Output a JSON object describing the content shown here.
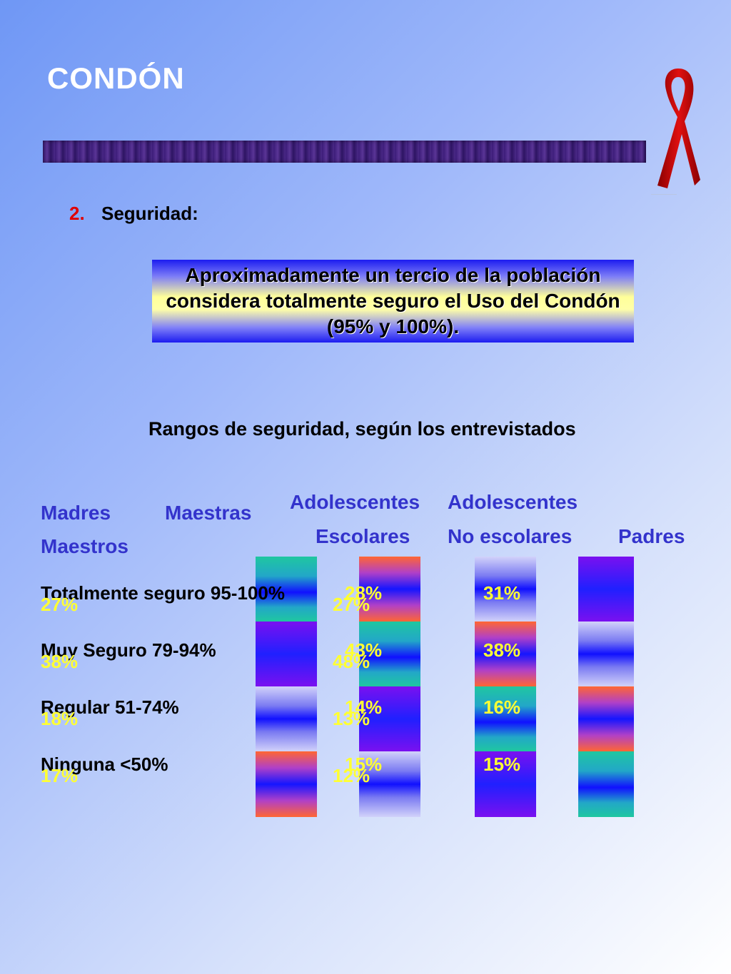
{
  "slide": {
    "title": "CONDÓN",
    "section_number": "2.",
    "section_label": "Seguridad:",
    "callout": "Aproximadamente un tercio de la población considera totalmente seguro el Uso del Condón (95%  y 100%)."
  },
  "chart_data": {
    "type": "bar",
    "title": "Rangos de seguridad, según los entrevistados",
    "group_headers": {
      "madres": "Madres",
      "maestras": "Maestras",
      "maestros": "Maestros",
      "adolescentes_1": "Adolescentes",
      "escolares": "Escolares",
      "adolescentes_2": "Adolescentes",
      "no_escolares": "No escolares",
      "padres": "Padres"
    },
    "categories": [
      "Totalmente seguro 95-100%",
      "Muy Seguro 79-94%",
      "Regular 51-74%",
      "Ninguna <50%"
    ],
    "series": [
      {
        "name": "Madres Maestras Maestros",
        "values": [
          27,
          38,
          18,
          17
        ]
      },
      {
        "name": "Adolescentes Escolares",
        "values": [
          27,
          48,
          13,
          12
        ]
      },
      {
        "name": "Adolescentes Escolares",
        "values": [
          28,
          43,
          14,
          15
        ]
      },
      {
        "name": "Adolescentes No escolares",
        "values": [
          31,
          38,
          16,
          15
        ]
      }
    ],
    "value_labels": [
      [
        "27%",
        "38%",
        "18%",
        "17%"
      ],
      [
        "27%",
        "48%",
        "13%",
        "12%"
      ],
      [
        "28%",
        "43%",
        "14%",
        "15%"
      ],
      [
        "31%",
        "38%",
        "16%",
        "15%"
      ]
    ]
  }
}
